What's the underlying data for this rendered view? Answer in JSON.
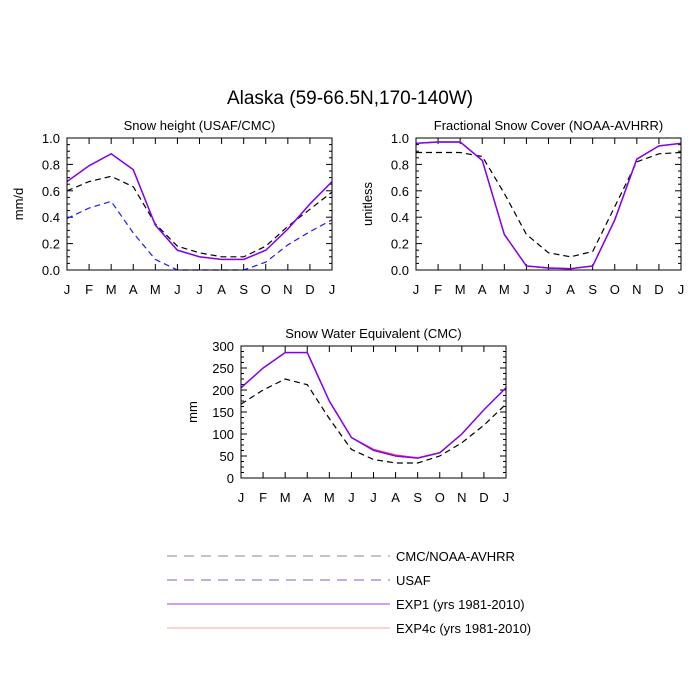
{
  "figure": {
    "title": "Alaska (59-66.5N,170-140W)"
  },
  "months": [
    "J",
    "F",
    "M",
    "A",
    "M",
    "J",
    "J",
    "A",
    "S",
    "O",
    "N",
    "D",
    "J"
  ],
  "legend": [
    {
      "label": "CMC/NOAA-AVHRR",
      "color": "#000000",
      "dash": "long"
    },
    {
      "label": "USAF",
      "color": "#1a1aff",
      "dash": "long"
    },
    {
      "label": "EXP1 (yrs 1981-2010)",
      "color": "#7a00ff",
      "dash": "solid"
    },
    {
      "label": "EXP4c (yrs 1981-2010)",
      "color": "#ff4040",
      "dash": "solid"
    }
  ],
  "chart_data": [
    {
      "type": "line",
      "title": "Snow height (USAF/CMC)",
      "ylabel": "mm/d",
      "ylim": [
        0,
        1.0
      ],
      "yticks": [
        0.0,
        0.2,
        0.4,
        0.6,
        0.8,
        1.0
      ],
      "ytick_labels": [
        "0.0",
        "0.2",
        "0.4",
        "0.6",
        "0.8",
        "1.0"
      ],
      "series": [
        {
          "name": "CMC/NOAA-AVHRR",
          "color": "#000000",
          "dash": "short",
          "values": [
            0.6,
            0.67,
            0.71,
            0.63,
            0.35,
            0.18,
            0.13,
            0.1,
            0.1,
            0.18,
            0.33,
            0.46,
            0.59
          ]
        },
        {
          "name": "USAF",
          "color": "#1a1aff",
          "dash": "short",
          "values": [
            0.39,
            0.47,
            0.52,
            0.28,
            0.08,
            0.0,
            0.0,
            0.0,
            0.0,
            0.06,
            0.19,
            0.29,
            0.38
          ]
        },
        {
          "name": "EXP4c (yrs 1981-2010)",
          "color": "#ff4040",
          "dash": "solid",
          "values": [
            0.67,
            0.79,
            0.88,
            0.76,
            0.34,
            0.15,
            0.1,
            0.08,
            0.08,
            0.15,
            0.31,
            0.5,
            0.67
          ]
        },
        {
          "name": "EXP1 (yrs 1981-2010)",
          "color": "#7a00ff",
          "dash": "solid",
          "values": [
            0.67,
            0.79,
            0.88,
            0.76,
            0.34,
            0.15,
            0.1,
            0.08,
            0.08,
            0.15,
            0.31,
            0.5,
            0.67
          ]
        }
      ]
    },
    {
      "type": "line",
      "title": "Fractional Snow Cover (NOAA-AVHRR)",
      "ylabel": "unitless",
      "ylim": [
        0,
        1.0
      ],
      "yticks": [
        0.0,
        0.2,
        0.4,
        0.6,
        0.8,
        1.0
      ],
      "ytick_labels": [
        "0.0",
        "0.2",
        "0.4",
        "0.6",
        "0.8",
        "1.0"
      ],
      "series": [
        {
          "name": "CMC/NOAA-AVHRR",
          "color": "#000000",
          "dash": "short",
          "values": [
            0.89,
            0.89,
            0.89,
            0.86,
            0.58,
            0.27,
            0.13,
            0.1,
            0.14,
            0.48,
            0.82,
            0.88,
            0.89
          ]
        },
        {
          "name": "EXP4c (yrs 1981-2010)",
          "color": "#ff4040",
          "dash": "solid",
          "values": [
            0.96,
            0.97,
            0.97,
            0.83,
            0.27,
            0.03,
            0.015,
            0.01,
            0.03,
            0.38,
            0.84,
            0.94,
            0.96
          ]
        },
        {
          "name": "EXP1 (yrs 1981-2010)",
          "color": "#7a00ff",
          "dash": "solid",
          "values": [
            0.96,
            0.97,
            0.97,
            0.83,
            0.27,
            0.03,
            0.015,
            0.01,
            0.03,
            0.38,
            0.84,
            0.94,
            0.96
          ]
        }
      ]
    },
    {
      "type": "line",
      "title": "Snow Water Equivalent (CMC)",
      "ylabel": "mm",
      "ylim": [
        0,
        300
      ],
      "yticks": [
        0,
        50,
        100,
        150,
        200,
        250,
        300
      ],
      "ytick_labels": [
        "0",
        "50",
        "100",
        "150",
        "200",
        "250",
        "300"
      ],
      "series": [
        {
          "name": "CMC/NOAA-AVHRR",
          "color": "#000000",
          "dash": "short",
          "values": [
            168,
            200,
            225,
            212,
            135,
            65,
            42,
            34,
            34,
            50,
            80,
            120,
            168
          ]
        },
        {
          "name": "EXP4c (yrs 1981-2010)",
          "color": "#ff4040",
          "dash": "solid",
          "values": [
            205,
            250,
            285,
            285,
            175,
            92,
            65,
            52,
            46,
            58,
            100,
            155,
            205
          ]
        },
        {
          "name": "EXP1 (yrs 1981-2010)",
          "color": "#7a00ff",
          "dash": "solid",
          "values": [
            205,
            250,
            285,
            285,
            175,
            92,
            63,
            50,
            45,
            57,
            100,
            155,
            205
          ]
        }
      ]
    }
  ]
}
